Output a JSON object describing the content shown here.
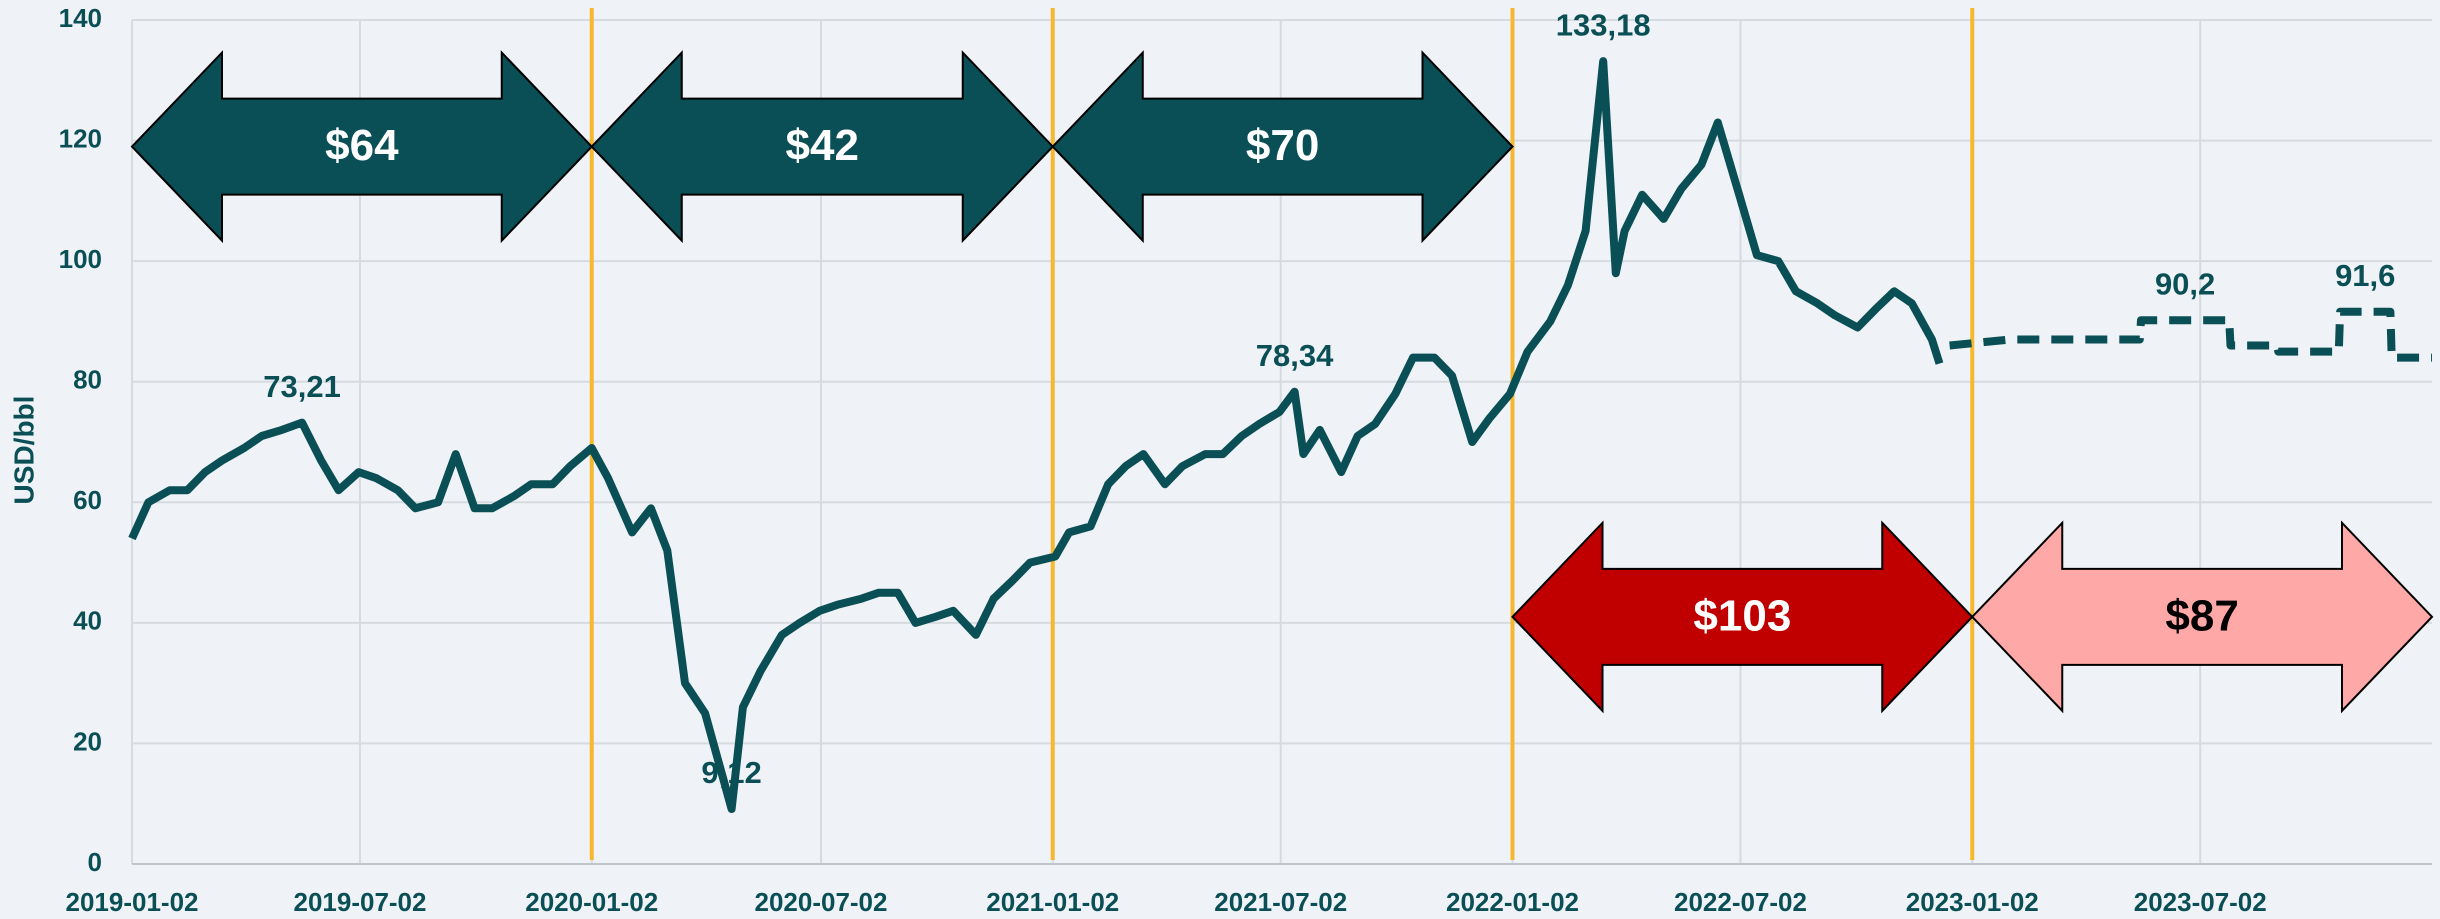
{
  "chart_data": {
    "type": "line",
    "y_label": "USD/bbl",
    "xlim": [
      "2019-01-02",
      "2024-01-02"
    ],
    "xticks": [
      "2019-01-02",
      "2019-07-02",
      "2020-01-02",
      "2020-07-02",
      "2021-01-02",
      "2021-07-02",
      "2022-01-02",
      "2022-07-02",
      "2023-01-02",
      "2023-07-02"
    ],
    "ylim": [
      0,
      140
    ],
    "yticks": [
      0,
      20,
      40,
      60,
      80,
      100,
      120,
      140
    ],
    "grid": true,
    "series": [
      {
        "color": "#0a4f55",
        "dashed": false,
        "x": [
          "2019-01-02",
          "2019-01-15",
          "2019-02-01",
          "2019-02-15",
          "2019-03-01",
          "2019-03-15",
          "2019-04-01",
          "2019-04-15",
          "2019-05-01",
          "2019-05-17",
          "2019-06-01",
          "2019-06-15",
          "2019-07-01",
          "2019-07-15",
          "2019-08-01",
          "2019-08-15",
          "2019-09-02",
          "2019-09-16",
          "2019-10-01",
          "2019-10-15",
          "2019-11-01",
          "2019-11-15",
          "2019-12-02",
          "2019-12-16",
          "2020-01-02",
          "2020-01-15",
          "2020-02-03",
          "2020-02-18",
          "2020-03-02",
          "2020-03-16",
          "2020-04-01",
          "2020-04-22",
          "2020-05-01",
          "2020-05-15",
          "2020-06-01",
          "2020-06-15",
          "2020-07-01",
          "2020-07-15",
          "2020-08-03",
          "2020-08-17",
          "2020-09-01",
          "2020-09-15",
          "2020-10-01",
          "2020-10-15",
          "2020-11-02",
          "2020-11-16",
          "2020-12-01",
          "2020-12-15",
          "2021-01-04",
          "2021-01-15",
          "2021-02-01",
          "2021-02-15",
          "2021-03-01",
          "2021-03-15",
          "2021-04-01",
          "2021-04-15",
          "2021-05-03",
          "2021-05-17",
          "2021-06-01",
          "2021-06-15",
          "2021-07-01",
          "2021-07-13",
          "2021-07-20",
          "2021-08-02",
          "2021-08-19",
          "2021-09-01",
          "2021-09-15",
          "2021-10-01",
          "2021-10-15",
          "2021-11-01",
          "2021-11-15",
          "2021-12-01",
          "2021-12-15",
          "2021-12-31",
          "2022-01-14",
          "2022-02-01",
          "2022-02-15",
          "2022-03-01",
          "2022-03-15",
          "2022-03-25",
          "2022-04-01",
          "2022-04-15",
          "2022-05-02",
          "2022-05-16",
          "2022-06-01",
          "2022-06-14",
          "2022-07-01",
          "2022-07-15",
          "2022-08-01",
          "2022-08-15",
          "2022-09-01",
          "2022-09-15",
          "2022-10-03",
          "2022-10-17",
          "2022-11-01",
          "2022-11-15",
          "2022-12-01",
          "2022-12-07"
        ],
        "values": [
          54,
          60,
          62,
          62,
          65,
          67,
          69,
          71,
          72,
          73.21,
          67,
          62,
          65,
          64,
          62,
          59,
          60,
          68,
          59,
          59,
          61,
          63,
          63,
          66,
          69,
          64,
          55,
          59,
          52,
          30,
          25,
          9.12,
          26,
          32,
          38,
          40,
          42,
          43,
          44,
          45,
          45,
          40,
          41,
          42,
          38,
          44,
          47,
          50,
          51,
          55,
          56,
          63,
          66,
          68,
          63,
          66,
          68,
          68,
          71,
          73,
          75,
          78.34,
          68,
          72,
          65,
          71,
          73,
          78,
          84,
          84,
          81,
          70,
          74,
          78,
          85,
          90,
          96,
          105,
          133.18,
          98,
          105,
          111,
          107,
          112,
          116,
          123,
          111,
          101,
          100,
          95,
          93,
          91,
          89,
          92,
          95,
          93,
          87,
          83
        ]
      },
      {
        "color": "#0a4f55",
        "dashed": true,
        "x": [
          "2022-12-15",
          "2023-02-01",
          "2023-05-15",
          "2023-05-16",
          "2023-07-25",
          "2023-07-26",
          "2023-09-01",
          "2023-09-02",
          "2023-10-20",
          "2023-10-21",
          "2023-11-30",
          "2023-12-01",
          "2024-01-02"
        ],
        "values": [
          86,
          87,
          87,
          90.2,
          90.2,
          86,
          86,
          85,
          85,
          91.6,
          91.6,
          84,
          84
        ]
      }
    ],
    "annotations": [
      {
        "text": "73,21",
        "x": "2019-05-17",
        "y": 73.21
      },
      {
        "text": "9,12",
        "x": "2020-04-22",
        "y": 9.12
      },
      {
        "text": "78,34",
        "x": "2021-07-13",
        "y": 78.34
      },
      {
        "text": "133,18",
        "x": "2022-03-15",
        "y": 133.18
      },
      {
        "text": "90,2",
        "x": "2023-06-20",
        "y": 90.2
      },
      {
        "text": "91,6",
        "x": "2023-11-10",
        "y": 91.6
      }
    ],
    "periods": [
      {
        "label": "$64",
        "value": 64,
        "start": "2019-01-02",
        "end": "2020-01-02",
        "color": "#0a4f55",
        "text_color": "#ffffff"
      },
      {
        "label": "$42",
        "value": 42,
        "start": "2020-01-02",
        "end": "2021-01-02",
        "color": "#0a4f55",
        "text_color": "#ffffff"
      },
      {
        "label": "$70",
        "value": 70,
        "start": "2021-01-02",
        "end": "2022-01-02",
        "color": "#0a4f55",
        "text_color": "#ffffff"
      },
      {
        "label": "$103",
        "value": 103,
        "start": "2022-01-02",
        "end": "2023-01-02",
        "color": "#c00000",
        "text_color": "#ffffff"
      },
      {
        "label": "$87",
        "value": 87,
        "start": "2023-01-02",
        "end": "2024-01-02",
        "color": "#ffa8a8",
        "text_color": "#000000"
      }
    ]
  }
}
